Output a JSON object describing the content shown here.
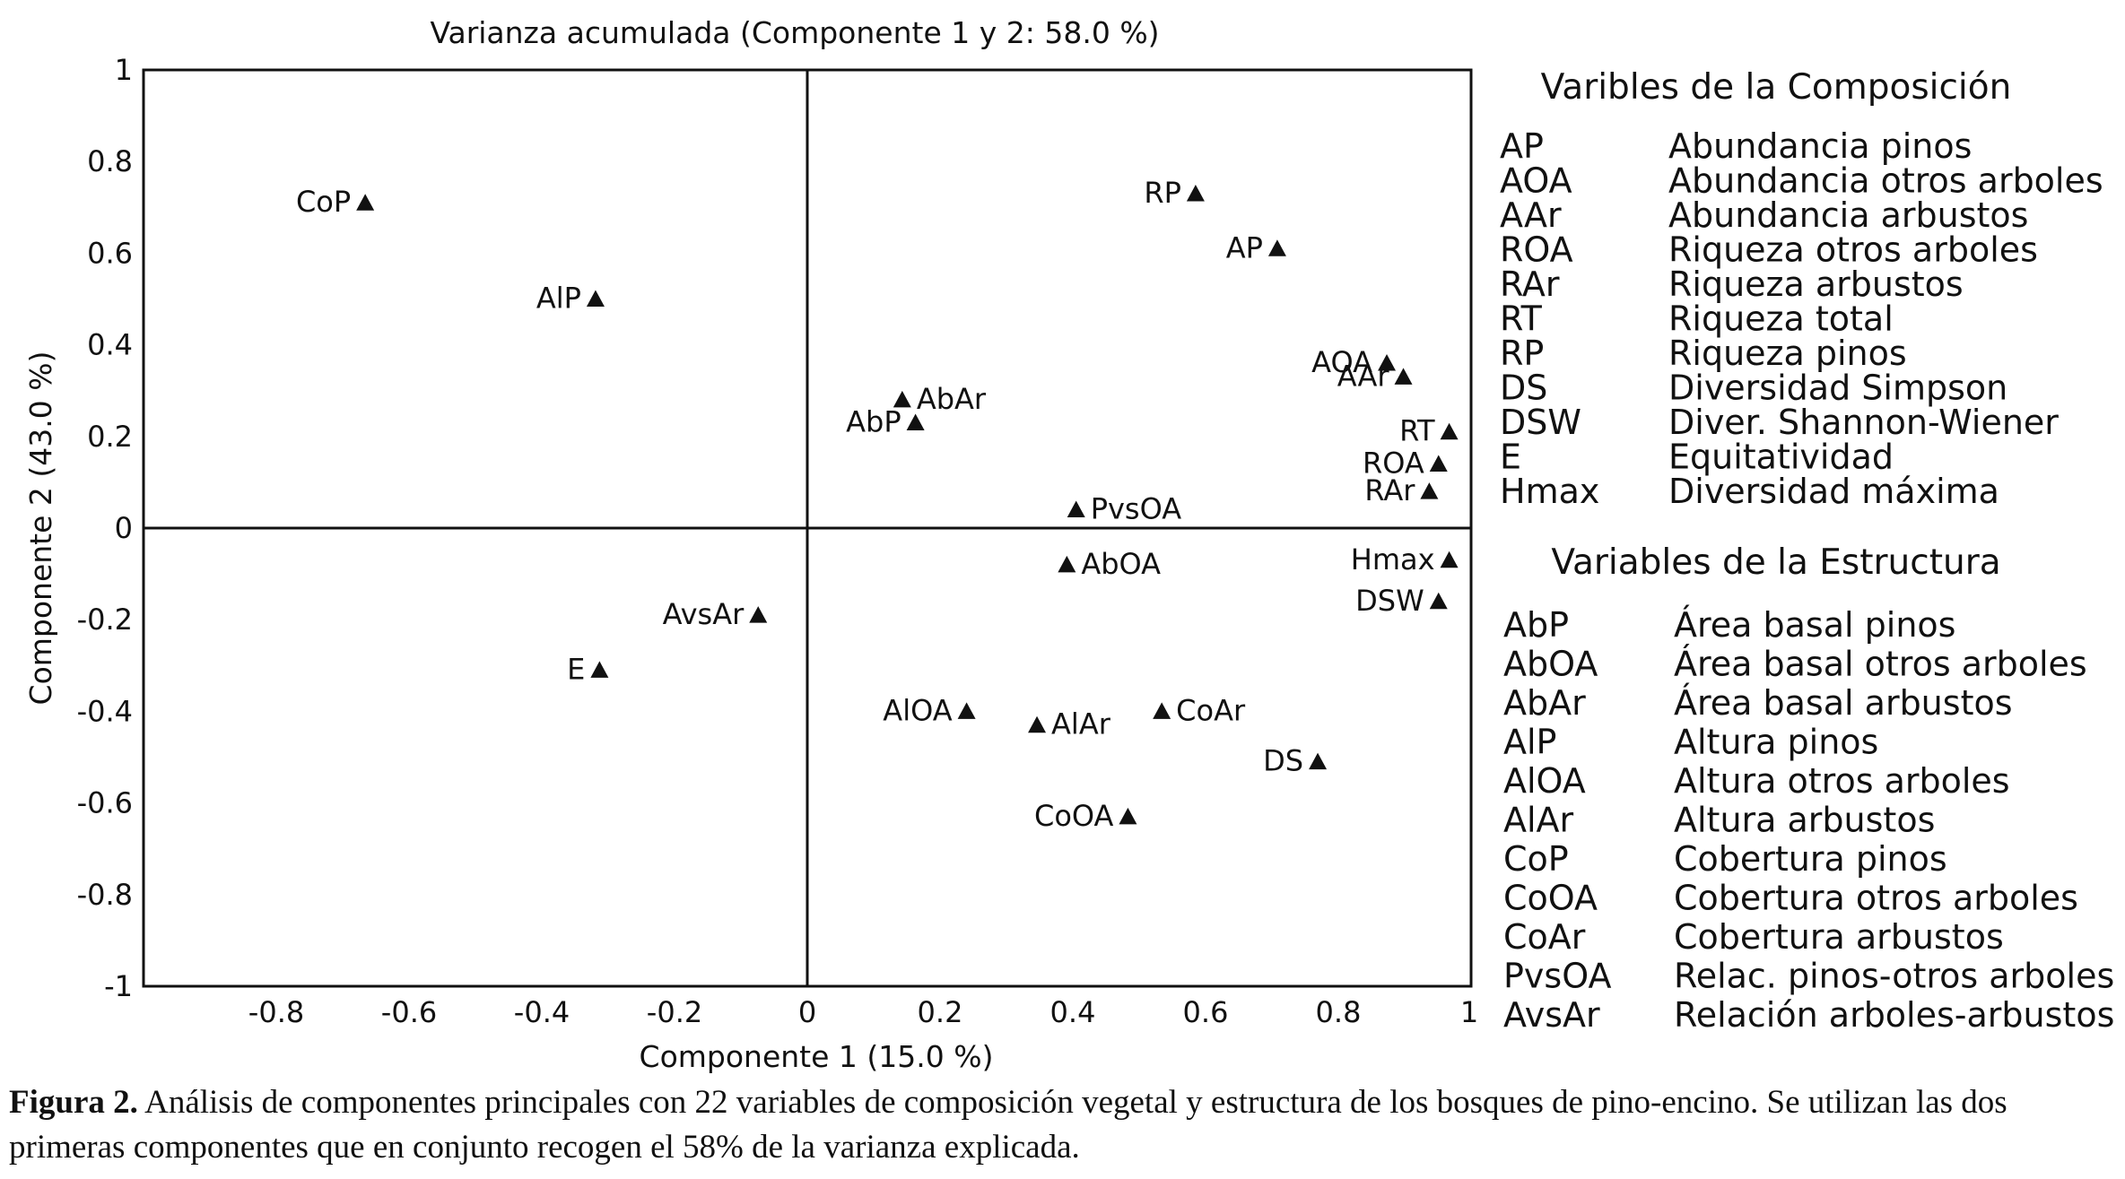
{
  "chart_data": {
    "type": "scatter",
    "title": "Varianza acumulada (Componente 1 y 2:  58.0 %)",
    "xlabel": "Componente 1  (15.0 %)",
    "ylabel": "Componente 2  (43.0 %)",
    "xlim": [
      -1,
      1
    ],
    "ylim": [
      -1,
      1
    ],
    "xticks": [
      "-0.8",
      "-0.6",
      "-0.4",
      "-0.2",
      "0",
      "0.2",
      "0.4",
      "0.6",
      "0.8",
      "1"
    ],
    "yticks": [
      "1",
      "0.8",
      "0.6",
      "0.4",
      "0.2",
      "0",
      "-0.2",
      "-0.4",
      "-0.6",
      "-0.8",
      "-1"
    ],
    "marker": "triangle",
    "points": [
      {
        "label": "CoP",
        "x": -0.666,
        "y": 0.71
      },
      {
        "label": "AlP",
        "x": -0.319,
        "y": 0.5
      },
      {
        "label": "RP",
        "x": 0.585,
        "y": 0.73
      },
      {
        "label": "AP",
        "x": 0.708,
        "y": 0.61
      },
      {
        "label": "AOA",
        "x": 0.873,
        "y": 0.36
      },
      {
        "label": "AAr",
        "x": 0.898,
        "y": 0.33
      },
      {
        "label": "RT",
        "x": 0.967,
        "y": 0.21
      },
      {
        "label": "ROA",
        "x": 0.951,
        "y": 0.14
      },
      {
        "label": "RAr",
        "x": 0.937,
        "y": 0.08
      },
      {
        "label": "AbAr",
        "x": 0.143,
        "y": 0.28
      },
      {
        "label": "AbP",
        "x": 0.163,
        "y": 0.23
      },
      {
        "label": "PvsOA",
        "x": 0.405,
        "y": 0.04
      },
      {
        "label": "AbOA",
        "x": 0.391,
        "y": -0.08
      },
      {
        "label": "Hmax",
        "x": 0.967,
        "y": -0.07
      },
      {
        "label": "DSW",
        "x": 0.951,
        "y": -0.16
      },
      {
        "label": "AvsAr",
        "x": -0.074,
        "y": -0.19
      },
      {
        "label": "E",
        "x": -0.313,
        "y": -0.31
      },
      {
        "label": "AlOA",
        "x": 0.24,
        "y": -0.4
      },
      {
        "label": "AlAr",
        "x": 0.346,
        "y": -0.43
      },
      {
        "label": "CoAr",
        "x": 0.534,
        "y": -0.4
      },
      {
        "label": "DS",
        "x": 0.769,
        "y": -0.51
      },
      {
        "label": "CoOA",
        "x": 0.483,
        "y": -0.63
      }
    ]
  },
  "legend": {
    "composition_title": "Varibles de la Composición",
    "composition": [
      {
        "code": "AP",
        "desc": "Abundancia pinos"
      },
      {
        "code": "AOA",
        "desc": "Abundancia otros arboles"
      },
      {
        "code": "AAr",
        "desc": "Abundancia arbustos"
      },
      {
        "code": "ROA",
        "desc": "Riqueza otros arboles"
      },
      {
        "code": "RAr",
        "desc": "Riqueza arbustos"
      },
      {
        "code": "RT",
        "desc": "Riqueza total"
      },
      {
        "code": "RP",
        "desc": "Riqueza pinos"
      },
      {
        "code": "DS",
        "desc": "Diversidad Simpson"
      },
      {
        "code": "DSW",
        "desc": "Diver. Shannon-Wiener"
      },
      {
        "code": "E",
        "desc": "Equitatividad"
      },
      {
        "code": "Hmax",
        "desc": "Diversidad máxima"
      }
    ],
    "structure_title": "Variables de la Estructura",
    "structure": [
      {
        "code": "AbP",
        "desc": "Área basal pinos"
      },
      {
        "code": "AbOA",
        "desc": "Área basal otros arboles"
      },
      {
        "code": "AbAr",
        "desc": "Área basal arbustos"
      },
      {
        "code": "AlP",
        "desc": "Altura pinos"
      },
      {
        "code": "AlOA",
        "desc": "Altura otros arboles"
      },
      {
        "code": "AlAr",
        "desc": "Altura arbustos"
      },
      {
        "code": "CoP",
        "desc": "Cobertura pinos"
      },
      {
        "code": "CoOA",
        "desc": "Cobertura otros arboles"
      },
      {
        "code": "CoAr",
        "desc": "Cobertura arbustos"
      },
      {
        "code": "PvsOA",
        "desc": "Relac. pinos-otros arboles"
      },
      {
        "code": "AvsAr",
        "desc": "Relación arboles-arbustos"
      }
    ]
  },
  "caption": {
    "label": "Figura 2.",
    "text": " Análisis de componentes principales con 22 variables de composición vegetal y estructura de los bosques de pino-encino. Se utilizan las dos primeras componentes que en conjunto recogen el 58% de la varianza explicada."
  }
}
